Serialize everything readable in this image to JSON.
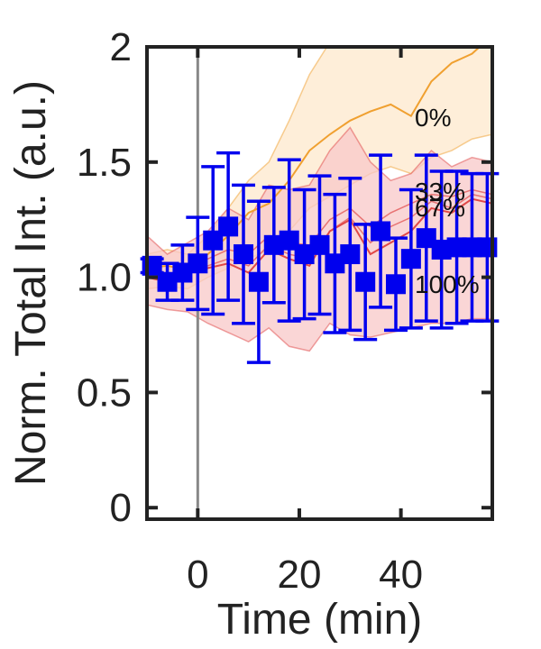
{
  "chart_data": {
    "type": "line",
    "xlabel": "Time (min)",
    "ylabel": "Norm. Total Int. (a.u.)",
    "xlim": [
      -10,
      58
    ],
    "ylim": [
      -0.05,
      2.0
    ],
    "x_ticks": [
      0,
      20,
      40
    ],
    "x_tick_labels": [
      "0",
      "20",
      "40"
    ],
    "y_ticks": [
      0,
      0.5,
      1.0,
      1.5,
      2.0
    ],
    "y_tick_labels": [
      "0",
      "0.5",
      "1.0",
      "1.5",
      "2"
    ],
    "grid": false,
    "reference_line_x": 0,
    "colors": {
      "axis": "#222222",
      "reference_line": "#888888",
      "series_0pct_line": "#f0a030",
      "series_0pct_fill": "#fde8cc",
      "series_100pct_line": "#e04848",
      "series_100pct_fill": "#f8c8c8",
      "errorbar_series": "#0000ee"
    },
    "annotations": [
      "0%",
      "33%",
      "67%",
      "100%"
    ],
    "bands": [
      {
        "label": "0%",
        "x": [
          -10,
          -6,
          -2,
          2,
          6,
          10,
          14,
          18,
          22,
          26,
          30,
          34,
          38,
          42,
          46,
          50,
          54,
          58
        ],
        "mean": [
          1.04,
          1.05,
          1.03,
          1.1,
          1.18,
          1.28,
          1.32,
          1.42,
          1.55,
          1.62,
          1.68,
          1.72,
          1.75,
          1.7,
          1.85,
          1.93,
          1.97,
          2.05
        ],
        "upper": [
          1.1,
          1.12,
          1.1,
          1.18,
          1.3,
          1.42,
          1.5,
          1.68,
          1.88,
          2.02,
          2.1,
          2.15,
          2.2,
          2.15,
          2.25,
          2.3,
          2.35,
          2.4
        ],
        "lower": [
          0.95,
          0.96,
          0.95,
          1.0,
          1.04,
          1.08,
          1.12,
          1.2,
          1.3,
          1.35,
          1.4,
          1.45,
          1.48,
          1.45,
          1.52,
          1.55,
          1.6,
          1.62
        ]
      },
      {
        "label": "100%",
        "x": [
          -10,
          -6,
          -2,
          2,
          6,
          10,
          14,
          18,
          22,
          26,
          30,
          34,
          38,
          42,
          46,
          50,
          54,
          58
        ],
        "mean": [
          1.0,
          0.98,
          1.02,
          1.04,
          1.06,
          1.02,
          1.12,
          1.08,
          1.05,
          1.2,
          1.25,
          1.1,
          1.15,
          1.2,
          1.3,
          1.28,
          1.34,
          1.32
        ],
        "upper": [
          1.18,
          1.1,
          1.15,
          1.2,
          1.3,
          1.25,
          1.4,
          1.38,
          1.4,
          1.55,
          1.65,
          1.5,
          1.42,
          1.45,
          1.55,
          1.48,
          1.52,
          1.5
        ],
        "lower": [
          0.88,
          0.86,
          0.85,
          0.8,
          0.76,
          0.72,
          0.78,
          0.7,
          0.68,
          0.8,
          0.75,
          0.74,
          0.76,
          0.78,
          0.8,
          0.8,
          0.82,
          0.82
        ]
      }
    ],
    "series": [
      {
        "x": [
          -9,
          -6,
          -3,
          0,
          3,
          6,
          9,
          12,
          15,
          18,
          21,
          24,
          27,
          30,
          33,
          36,
          39,
          42,
          45,
          48,
          51,
          54,
          57
        ],
        "y": [
          1.05,
          0.98,
          1.02,
          1.06,
          1.16,
          1.22,
          1.1,
          0.98,
          1.14,
          1.16,
          1.1,
          1.14,
          1.06,
          1.1,
          0.98,
          1.2,
          0.97,
          1.08,
          1.17,
          1.12,
          1.13,
          1.13,
          1.13
        ],
        "yerr": [
          0.03,
          0.08,
          0.12,
          0.2,
          0.32,
          0.32,
          0.3,
          0.35,
          0.25,
          0.35,
          0.28,
          0.3,
          0.3,
          0.33,
          0.25,
          0.33,
          0.2,
          0.3,
          0.36,
          0.34,
          0.33,
          0.32,
          0.32
        ]
      }
    ],
    "extra_lines": [
      {
        "label": "33%",
        "x": [
          -10,
          -6,
          -2,
          2,
          6,
          10,
          14,
          18,
          22,
          26,
          30,
          34,
          38,
          42,
          46,
          50,
          54,
          58
        ],
        "y": [
          1.02,
          1.0,
          1.04,
          1.08,
          1.12,
          1.1,
          1.18,
          1.15,
          1.14,
          1.25,
          1.3,
          1.22,
          1.28,
          1.32,
          1.36,
          1.35,
          1.38,
          1.36
        ]
      },
      {
        "label": "67%",
        "x": [
          -10,
          -6,
          -2,
          2,
          6,
          10,
          14,
          18,
          22,
          26,
          30,
          34,
          38,
          42,
          46,
          50,
          54,
          58
        ],
        "y": [
          1.0,
          0.99,
          1.02,
          1.05,
          1.08,
          1.05,
          1.14,
          1.1,
          1.08,
          1.2,
          1.26,
          1.15,
          1.22,
          1.26,
          1.33,
          1.3,
          1.36,
          1.34
        ]
      }
    ]
  }
}
